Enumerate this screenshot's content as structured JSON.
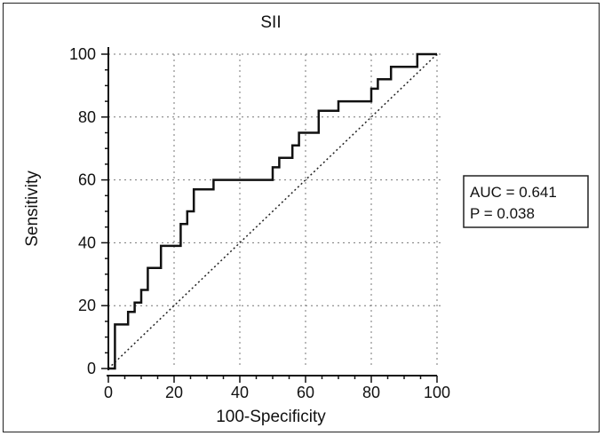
{
  "chart_data": {
    "type": "line",
    "title": "SII",
    "xlabel": "100-Specificity",
    "ylabel": "Sensitivity",
    "xlim": [
      0,
      100
    ],
    "ylim": [
      0,
      100
    ],
    "x_ticks": [
      "0",
      "20",
      "40",
      "60",
      "80",
      "100"
    ],
    "y_ticks": [
      "0",
      "20",
      "40",
      "60",
      "80",
      "100"
    ],
    "grid": true,
    "annotations": [
      "AUC = 0.641",
      "P = 0.038"
    ],
    "legend_placement": "right",
    "series": [
      {
        "type": "step",
        "x": [
          0,
          2,
          2,
          6,
          6,
          8,
          8,
          10,
          10,
          12,
          12,
          16,
          16,
          22,
          22,
          24,
          24,
          26,
          26,
          32,
          32,
          50,
          50,
          52,
          52,
          56,
          56,
          58,
          58,
          64,
          64,
          70,
          70,
          80,
          80,
          82,
          82,
          86,
          86,
          94,
          94,
          100
        ],
        "y": [
          0,
          0,
          14,
          14,
          18,
          18,
          21,
          21,
          25,
          25,
          32,
          32,
          39,
          39,
          46,
          46,
          50,
          50,
          57,
          57,
          60,
          60,
          64,
          64,
          67,
          67,
          71,
          71,
          75,
          75,
          82,
          82,
          85,
          85,
          89,
          89,
          92,
          92,
          96,
          96,
          100,
          100
        ]
      },
      {
        "type": "reference",
        "style": "dotted",
        "x": [
          0,
          100
        ],
        "y": [
          0,
          100
        ]
      }
    ]
  }
}
